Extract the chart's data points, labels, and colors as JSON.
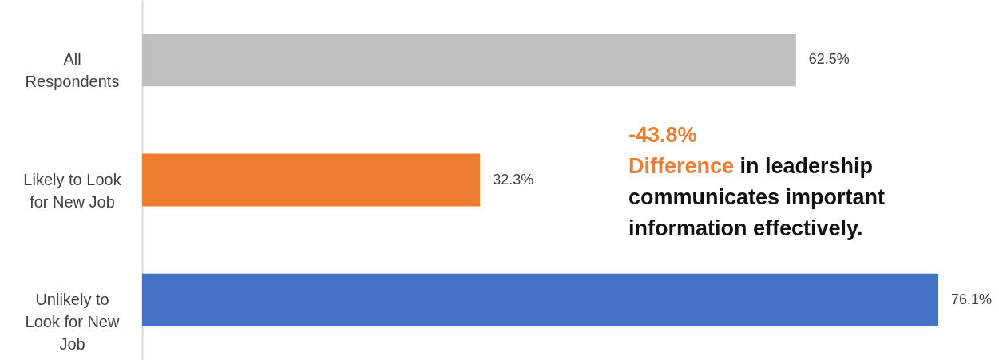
{
  "chart_data": {
    "type": "bar",
    "orientation": "horizontal",
    "categories": [
      "All Respondents",
      "Likely to Look for New Job",
      "Unlikely to Look for New Job"
    ],
    "values": [
      62.5,
      32.3,
      76.1
    ],
    "colors": [
      "#bfbfbf",
      "#ed7d31",
      "#4472c4"
    ],
    "value_labels": [
      "62.5%",
      "32.3%",
      "76.1%"
    ],
    "annotations": [
      "-43.8%",
      "Difference in leadership communicates important information effectively."
    ]
  }
}
